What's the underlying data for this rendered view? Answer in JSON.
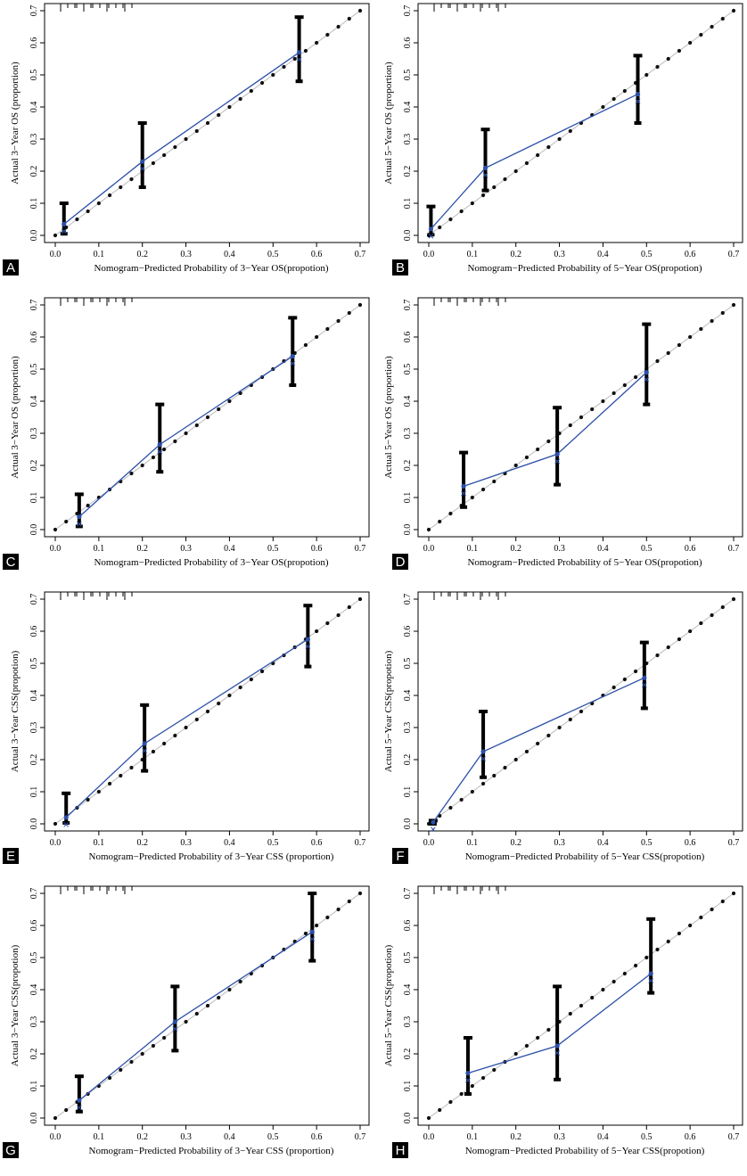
{
  "figure": {
    "panels": [
      {
        "letter": "A",
        "chart_data": {
          "type": "scatter",
          "xlabel": "Nomogram−Predicted Probability of 3−Year OS(propotion)",
          "ylabel": "Actual 3−Year OS (proportion)",
          "xlim": [
            0,
            0.7
          ],
          "ylim": [
            0,
            0.7
          ],
          "x_ticks": [
            "0.0",
            "0.1",
            "0.2",
            "0.3",
            "0.4",
            "0.5",
            "0.6",
            "0.7"
          ],
          "y_ticks": [
            "0.0",
            "0.1",
            "0.2",
            "0.3",
            "0.4",
            "0.5",
            "0.6",
            "0.7"
          ],
          "reference_line": true,
          "series": [
            {
              "x": [
                0.02,
                0.2,
                0.56
              ],
              "y": [
                0.035,
                0.23,
                0.57
              ],
              "ci_low": [
                0.005,
                0.15,
                0.48
              ],
              "ci_high": [
                0.1,
                0.35,
                0.68
              ]
            }
          ]
        }
      },
      {
        "letter": "B",
        "chart_data": {
          "type": "scatter",
          "xlabel": "Nomogram−Predicted Probability of 5−Year OS(propotion)",
          "ylabel": "Actual 5−Year OS (proportion)",
          "xlim": [
            0,
            0.7
          ],
          "ylim": [
            0,
            0.7
          ],
          "x_ticks": [
            "0.0",
            "0.1",
            "0.2",
            "0.3",
            "0.4",
            "0.5",
            "0.6",
            "0.7"
          ],
          "y_ticks": [
            "0.0",
            "0.1",
            "0.2",
            "0.3",
            "0.4",
            "0.5",
            "0.6",
            "0.7"
          ],
          "reference_line": true,
          "series": [
            {
              "x": [
                0.005,
                0.13,
                0.48
              ],
              "y": [
                0.02,
                0.21,
                0.44
              ],
              "ci_low": [
                0.002,
                0.14,
                0.35
              ],
              "ci_high": [
                0.09,
                0.33,
                0.56
              ]
            }
          ]
        }
      },
      {
        "letter": "C",
        "chart_data": {
          "type": "scatter",
          "xlabel": "Nomogram−Predicted Probability of 3−Year OS(propotion)",
          "ylabel": "Actual 3−Year OS  (proportion)",
          "xlim": [
            0,
            0.7
          ],
          "ylim": [
            0,
            0.7
          ],
          "x_ticks": [
            "0.0",
            "0.1",
            "0.2",
            "0.3",
            "0.4",
            "0.5",
            "0.6",
            "0.7"
          ],
          "y_ticks": [
            "0.0",
            "0.1",
            "0.2",
            "0.3",
            "0.4",
            "0.5",
            "0.6",
            "0.7"
          ],
          "reference_line": true,
          "series": [
            {
              "x": [
                0.055,
                0.24,
                0.545
              ],
              "y": [
                0.04,
                0.265,
                0.54
              ],
              "ci_low": [
                0.01,
                0.18,
                0.45
              ],
              "ci_high": [
                0.11,
                0.39,
                0.66
              ]
            }
          ]
        }
      },
      {
        "letter": "D",
        "chart_data": {
          "type": "scatter",
          "xlabel": "Nomogram−Predicted Probability of 5−Year OS(propotion)",
          "ylabel": "Actual 5−Year OS (proportion)",
          "xlim": [
            0,
            0.7
          ],
          "ylim": [
            0,
            0.7
          ],
          "x_ticks": [
            "0.0",
            "0.1",
            "0.2",
            "0.3",
            "0.4",
            "0.5",
            "0.6",
            "0.7"
          ],
          "y_ticks": [
            "0.0",
            "0.1",
            "0.2",
            "0.3",
            "0.4",
            "0.5",
            "0.6",
            "0.7"
          ],
          "reference_line": true,
          "series": [
            {
              "x": [
                0.08,
                0.295,
                0.5
              ],
              "y": [
                0.135,
                0.235,
                0.49
              ],
              "ci_low": [
                0.07,
                0.14,
                0.39
              ],
              "ci_high": [
                0.24,
                0.38,
                0.64
              ]
            }
          ]
        }
      },
      {
        "letter": "E",
        "chart_data": {
          "type": "scatter",
          "xlabel": "Nomogram−Predicted Probability of 3−Year CSS (proportion)",
          "ylabel": "Actual 3−Year CSS(propotion)",
          "xlim": [
            0,
            0.7
          ],
          "ylim": [
            0,
            0.7
          ],
          "x_ticks": [
            "0.0",
            "0.1",
            "0.2",
            "0.3",
            "0.4",
            "0.5",
            "0.6",
            "0.7"
          ],
          "y_ticks": [
            "0.0",
            "0.1",
            "0.2",
            "0.3",
            "0.4",
            "0.5",
            "0.6",
            "0.7"
          ],
          "reference_line": true,
          "series": [
            {
              "x": [
                0.025,
                0.205,
                0.58
              ],
              "y": [
                0.02,
                0.25,
                0.575
              ],
              "ci_low": [
                0.003,
                0.165,
                0.49
              ],
              "ci_high": [
                0.095,
                0.37,
                0.68
              ]
            }
          ]
        }
      },
      {
        "letter": "F",
        "chart_data": {
          "type": "scatter",
          "xlabel": "Nomogram−Predicted Probability of 5−Year CSS(propotion)",
          "ylabel": "Actual 5−Year CSS(propotion)",
          "xlim": [
            0,
            0.7
          ],
          "ylim": [
            0,
            0.7
          ],
          "x_ticks": [
            "0.0",
            "0.1",
            "0.2",
            "0.3",
            "0.4",
            "0.5",
            "0.6",
            "0.7"
          ],
          "y_ticks": [
            "0.0",
            "0.1",
            "0.2",
            "0.3",
            "0.4",
            "0.5",
            "0.6",
            "0.7"
          ],
          "reference_line": true,
          "series": [
            {
              "x": [
                0.01,
                0.125,
                0.495
              ],
              "y": [
                0.005,
                0.225,
                0.455
              ],
              "ci_low": [
                0.0,
                0.145,
                0.36
              ],
              "ci_high": [
                0.01,
                0.35,
                0.565
              ]
            }
          ]
        }
      },
      {
        "letter": "G",
        "chart_data": {
          "type": "scatter",
          "xlabel": "Nomogram−Predicted Probability of 3−Year CSS (proportion)",
          "ylabel": "Actual 3−Year CSS(propotion)",
          "xlim": [
            0,
            0.7
          ],
          "ylim": [
            0,
            0.7
          ],
          "x_ticks": [
            "0.0",
            "0.1",
            "0.2",
            "0.3",
            "0.4",
            "0.5",
            "0.6",
            "0.7"
          ],
          "y_ticks": [
            "0.0",
            "0.1",
            "0.2",
            "0.3",
            "0.4",
            "0.5",
            "0.6",
            "0.7"
          ],
          "reference_line": true,
          "series": [
            {
              "x": [
                0.055,
                0.275,
                0.59
              ],
              "y": [
                0.055,
                0.3,
                0.58
              ],
              "ci_low": [
                0.02,
                0.21,
                0.49
              ],
              "ci_high": [
                0.13,
                0.41,
                0.7
              ]
            }
          ]
        }
      },
      {
        "letter": "H",
        "chart_data": {
          "type": "scatter",
          "xlabel": "Nomogram−Predicted Probability of 5−Year CSS(propotion)",
          "ylabel": "Actual 5−Year CSS(propotion)",
          "xlim": [
            0,
            0.7
          ],
          "ylim": [
            0,
            0.7
          ],
          "x_ticks": [
            "0.0",
            "0.1",
            "0.2",
            "0.3",
            "0.4",
            "0.5",
            "0.6",
            "0.7"
          ],
          "y_ticks": [
            "0.0",
            "0.1",
            "0.2",
            "0.3",
            "0.4",
            "0.5",
            "0.6",
            "0.7"
          ],
          "reference_line": true,
          "series": [
            {
              "x": [
                0.09,
                0.295,
                0.51
              ],
              "y": [
                0.14,
                0.225,
                0.45
              ],
              "ci_low": [
                0.075,
                0.12,
                0.39
              ],
              "ci_high": [
                0.25,
                0.41,
                0.62
              ]
            }
          ]
        }
      }
    ],
    "colors": {
      "calibration": "#2b4fa8",
      "reference_dots": "#111111",
      "ci": "#000000"
    }
  }
}
